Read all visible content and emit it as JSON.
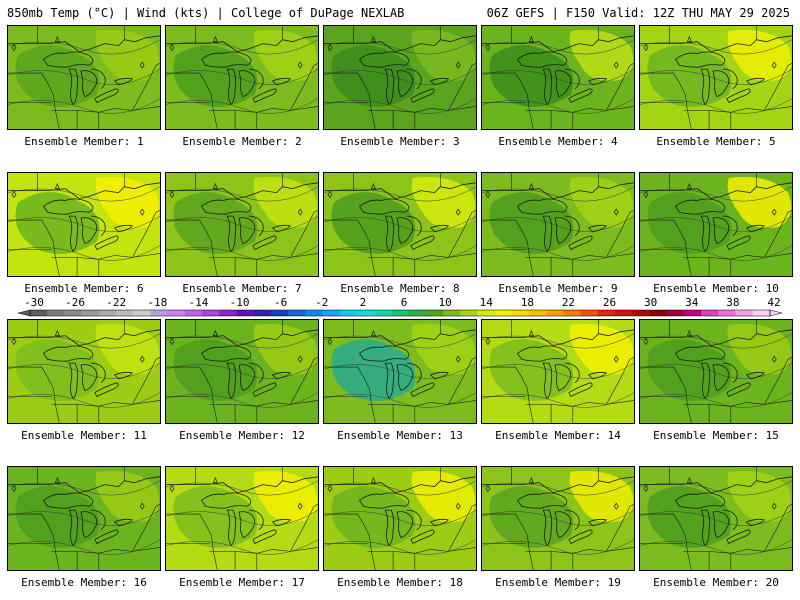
{
  "header": {
    "left": "850mb Temp (°C) | Wind (kts) | College of DuPage NEXLAB",
    "right": "06Z GEFS | F150 Valid: 12Z THU MAY 29 2025"
  },
  "panels": [
    {
      "label": "Ensemble Member: 1",
      "fill": "#7cbc1e",
      "blobs": [
        {
          "c": "#5aa41e"
        },
        {
          "c": "#9ccc14"
        }
      ]
    },
    {
      "label": "Ensemble Member: 2",
      "fill": "#7cbc1e",
      "blobs": [
        {
          "c": "#4e9c1e"
        },
        {
          "c": "#a4d414"
        }
      ]
    },
    {
      "label": "Ensemble Member: 3",
      "fill": "#5aa41e",
      "blobs": [
        {
          "c": "#3c8c1c"
        },
        {
          "c": "#7cbc1e"
        }
      ]
    },
    {
      "label": "Ensemble Member: 4",
      "fill": "#6cb41e",
      "blobs": [
        {
          "c": "#3c8c1c"
        },
        {
          "c": "#bce014"
        }
      ]
    },
    {
      "label": "Ensemble Member: 5",
      "fill": "#a4d414",
      "blobs": [
        {
          "c": "#6cb41e"
        },
        {
          "c": "#f0f000"
        }
      ]
    },
    {
      "label": "Ensemble Member: 6",
      "fill": "#c4e410",
      "blobs": [
        {
          "c": "#6cb41e"
        },
        {
          "c": "#f4f000"
        }
      ]
    },
    {
      "label": "Ensemble Member: 7",
      "fill": "#8cc41a",
      "blobs": [
        {
          "c": "#5aa41e"
        },
        {
          "c": "#c4e410"
        }
      ]
    },
    {
      "label": "Ensemble Member: 8",
      "fill": "#8cc41a",
      "blobs": [
        {
          "c": "#4e9c1e"
        },
        {
          "c": "#d8ec0c"
        }
      ]
    },
    {
      "label": "Ensemble Member: 9",
      "fill": "#7cbc1e",
      "blobs": [
        {
          "c": "#4e9c1e"
        },
        {
          "c": "#a4d414"
        }
      ]
    },
    {
      "label": "Ensemble Member: 10",
      "fill": "#6cb41e",
      "blobs": [
        {
          "c": "#4e9c1e"
        },
        {
          "c": "#f4f000"
        }
      ]
    },
    {
      "label": "Ensemble Member: 11",
      "fill": "#9ccc14",
      "blobs": [
        {
          "c": "#7cbc1e"
        },
        {
          "c": "#c4e410"
        }
      ]
    },
    {
      "label": "Ensemble Member: 12",
      "fill": "#6cb41e",
      "blobs": [
        {
          "c": "#4e9c1e"
        },
        {
          "c": "#9ccc14"
        }
      ]
    },
    {
      "label": "Ensemble Member: 13",
      "fill": "#7cbc1e",
      "blobs": [
        {
          "c": "#2aaa90"
        },
        {
          "c": "#a4d414"
        }
      ]
    },
    {
      "label": "Ensemble Member: 14",
      "fill": "#b4dc14",
      "blobs": [
        {
          "c": "#7cbc1e"
        },
        {
          "c": "#f4f000"
        }
      ]
    },
    {
      "label": "Ensemble Member: 15",
      "fill": "#6cb41e",
      "blobs": [
        {
          "c": "#4e9c1e"
        },
        {
          "c": "#9ccc14"
        }
      ]
    },
    {
      "label": "Ensemble Member: 16",
      "fill": "#6cb41e",
      "blobs": [
        {
          "c": "#4e9c1e"
        },
        {
          "c": "#9ccc14"
        }
      ]
    },
    {
      "label": "Ensemble Member: 17",
      "fill": "#b4dc14",
      "blobs": [
        {
          "c": "#7cbc1e"
        },
        {
          "c": "#f4f000"
        }
      ]
    },
    {
      "label": "Ensemble Member: 18",
      "fill": "#9ccc14",
      "blobs": [
        {
          "c": "#6cb41e"
        },
        {
          "c": "#f0f000"
        }
      ]
    },
    {
      "label": "Ensemble Member: 19",
      "fill": "#8cc41a",
      "blobs": [
        {
          "c": "#5aa41e"
        },
        {
          "c": "#f0f000"
        }
      ]
    },
    {
      "label": "Ensemble Member: 20",
      "fill": "#7cbc1e",
      "blobs": [
        {
          "c": "#4e9c1e"
        },
        {
          "c": "#a4d414"
        }
      ]
    }
  ],
  "colorbar": {
    "ticks": [
      "-30",
      "-26",
      "-22",
      "-18",
      "-14",
      "-10",
      "-6",
      "-2",
      "2",
      "6",
      "10",
      "14",
      "18",
      "22",
      "26",
      "30",
      "34",
      "38",
      "42"
    ],
    "colors": [
      "#5e5e5e",
      "#7a7a7a",
      "#8a8a8a",
      "#9a9a9a",
      "#aaaaaa",
      "#bcbcbc",
      "#cccccc",
      "#b4a0dc",
      "#d080f0",
      "#c060e8",
      "#b040e0",
      "#9020d0",
      "#6010c0",
      "#3020b0",
      "#1840c8",
      "#1464e0",
      "#1488f0",
      "#14a8f4",
      "#14c8f0",
      "#14dcd8",
      "#14d8a8",
      "#14c878",
      "#28b040",
      "#4ea41e",
      "#7cbc1e",
      "#a4d414",
      "#d8ec0c",
      "#f4f000",
      "#f8dc00",
      "#f8c000",
      "#f8a000",
      "#f87800",
      "#f05000",
      "#e82010",
      "#d01010",
      "#b00808",
      "#900000",
      "#a00040",
      "#c00080",
      "#e040c0",
      "#f070e0",
      "#f8a0f0",
      "#f8d0f8"
    ]
  }
}
